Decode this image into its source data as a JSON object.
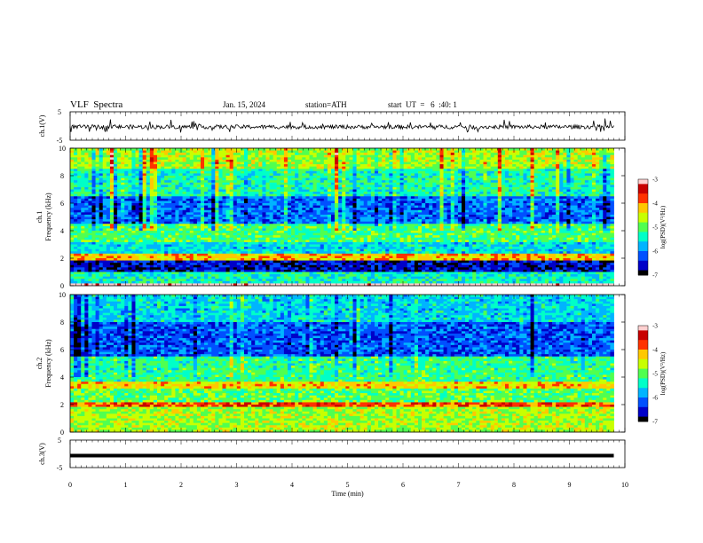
{
  "header": {
    "title": "VLF  Spectra",
    "date": "Jan. 15, 2024",
    "station": "station=ATH",
    "start_ut": "start  UT  =   6  :40: 1"
  },
  "chart_data": [
    {
      "type": "line",
      "name": "ch1-waveform",
      "ylabel": "ch.1(V)",
      "yticks": [
        "5",
        "-5"
      ],
      "ylim": [
        -5,
        5
      ],
      "x_range_min": [
        0,
        9.8
      ],
      "description_values": "noisy waveform centred near 0 V with spikes to about ±2.5 V"
    },
    {
      "type": "heatmap",
      "name": "ch1-spectrogram",
      "ylabel": "ch.1\nFrequency  (kHz)",
      "ylabel_lines": [
        "ch.1",
        "Frequency  (kHz)"
      ],
      "yticks": [
        "0",
        "2",
        "4",
        "6",
        "8",
        "10"
      ],
      "ylim": [
        0,
        10
      ],
      "xlim": [
        0,
        9.8
      ],
      "colorbar": {
        "label": "log(PSD)(V²/Hz)",
        "ticks": [
          "-3",
          "-4",
          "-5",
          "-6",
          "-7"
        ],
        "range": [
          -7,
          -3
        ]
      },
      "bands": [
        {
          "from": 0.0,
          "to": 0.15,
          "level": -2.8
        },
        {
          "from": 0.15,
          "to": 1.0,
          "level": -5.4
        },
        {
          "from": 1.0,
          "to": 1.9,
          "level": -6.6
        },
        {
          "from": 1.9,
          "to": 2.3,
          "level": -4.2
        },
        {
          "from": 2.3,
          "to": 3.2,
          "level": -5.6
        },
        {
          "from": 3.2,
          "to": 4.5,
          "level": -5.1
        },
        {
          "from": 4.5,
          "to": 6.5,
          "level": -6.1
        },
        {
          "from": 6.5,
          "to": 8.5,
          "level": -5.3
        },
        {
          "from": 8.5,
          "to": 10.0,
          "level": -4.7
        }
      ]
    },
    {
      "type": "heatmap",
      "name": "ch2-spectrogram",
      "ylabel_lines": [
        "ch.2",
        "Frequency  (kHz)"
      ],
      "yticks": [
        "0",
        "2",
        "4",
        "6",
        "8",
        "10"
      ],
      "ylim": [
        0,
        10
      ],
      "xlim": [
        0,
        9.8
      ],
      "colorbar": {
        "label": "log(PSD)(V²/Hz)",
        "ticks": [
          "-3",
          "-4",
          "-5",
          "-6",
          "-7"
        ],
        "range": [
          -7,
          -3
        ]
      },
      "bands": [
        {
          "from": 0.0,
          "to": 1.8,
          "level": -4.7
        },
        {
          "from": 1.8,
          "to": 2.2,
          "level": -3.8
        },
        {
          "from": 2.2,
          "to": 3.2,
          "level": -5.0
        },
        {
          "from": 3.2,
          "to": 3.7,
          "level": -4.3
        },
        {
          "from": 3.7,
          "to": 5.5,
          "level": -5.2
        },
        {
          "from": 5.5,
          "to": 8.0,
          "level": -6.2
        },
        {
          "from": 8.0,
          "to": 10.0,
          "level": -5.6
        }
      ]
    },
    {
      "type": "line",
      "name": "ch3-waveform",
      "ylabel": "ch.3(V)",
      "yticks": [
        "5",
        "-5"
      ],
      "ylim": [
        -5,
        5
      ],
      "x_range_min": [
        0,
        9.8
      ],
      "description_values": "flat thick line near 0 V"
    }
  ],
  "xaxis": {
    "label": "Time  (min)",
    "ticks": [
      "0",
      "1",
      "2",
      "3",
      "4",
      "5",
      "6",
      "7",
      "8",
      "9",
      "10"
    ],
    "xlim": [
      0,
      10
    ]
  },
  "colors": {
    "cmap": [
      "#000000",
      "#0000c8",
      "#0050ff",
      "#00b4ff",
      "#00ffc8",
      "#50ff50",
      "#c8ff00",
      "#ffc800",
      "#ff3200",
      "#c80000",
      "#ffd0d0"
    ]
  }
}
